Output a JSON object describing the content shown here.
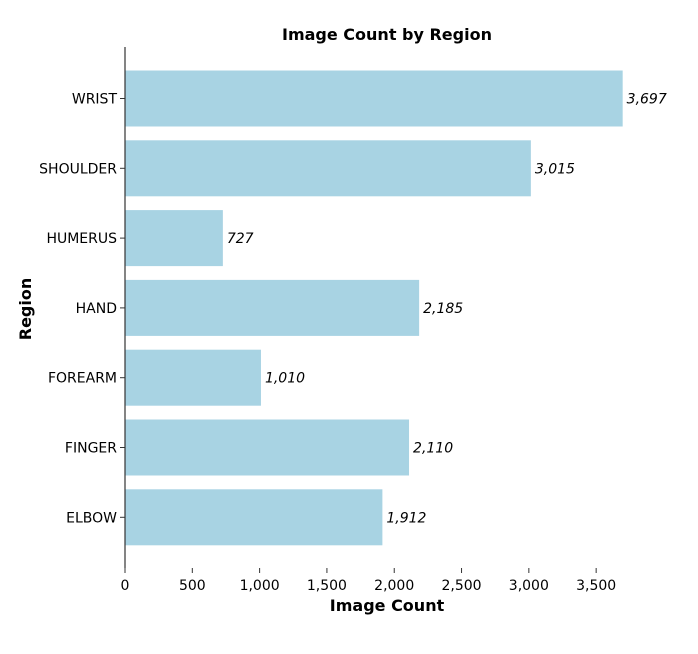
{
  "chart_data": {
    "type": "bar",
    "orientation": "horizontal",
    "title": "Image Count by Region",
    "xlabel": "Image Count",
    "ylabel": "Region",
    "categories": [
      "WRIST",
      "SHOULDER",
      "HUMERUS",
      "HAND",
      "FOREARM",
      "FINGER",
      "ELBOW"
    ],
    "values": [
      3697,
      3015,
      727,
      2185,
      1010,
      2110,
      1912
    ],
    "data_labels": [
      "3,697",
      "3,015",
      "727",
      "2,185",
      "1,010",
      "2,110",
      "1,912"
    ],
    "xlim": [
      0,
      3900
    ],
    "xticks": [
      0,
      500,
      1000,
      1500,
      2000,
      2500,
      3000,
      3500
    ],
    "xtick_labels": [
      "0",
      "500",
      "1,000",
      "1,500",
      "2,000",
      "2,500",
      "3,000",
      "3,500"
    ],
    "grid": false,
    "bar_color": "#a8d3e3",
    "axis_color": "#333333"
  }
}
